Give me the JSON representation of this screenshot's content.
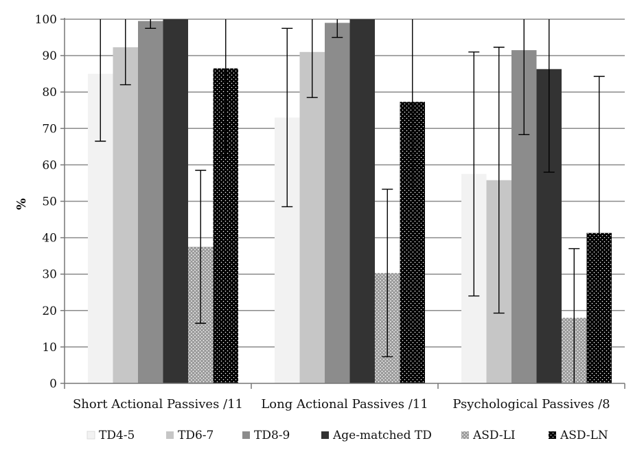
{
  "chart_data": {
    "type": "bar",
    "title": "",
    "xlabel": "",
    "ylabel": "%",
    "ylim": [
      0,
      100
    ],
    "yticks": [
      0,
      10,
      20,
      30,
      40,
      50,
      60,
      70,
      80,
      90,
      100
    ],
    "grid": true,
    "legend_position": "bottom",
    "categories": [
      "Short Actional Passives /11",
      "Long Actional Passives /11",
      "Psychological Passives /8"
    ],
    "series": [
      {
        "name": "TD4-5",
        "color": "#f2f2f2",
        "pattern": "solid",
        "values": [
          85,
          73,
          57.5
        ],
        "error": [
          18.5,
          24.5,
          33.5
        ]
      },
      {
        "name": "TD6-7",
        "color": "#c6c6c6",
        "pattern": "solid",
        "values": [
          92.3,
          91,
          55.8
        ],
        "error": [
          10.3,
          12.5,
          36.5
        ]
      },
      {
        "name": "TD8-9",
        "color": "#8c8c8c",
        "pattern": "solid",
        "values": [
          99.5,
          99,
          91.5
        ],
        "error": [
          2,
          4,
          23.2
        ]
      },
      {
        "name": "Age-matched TD",
        "color": "#333333",
        "pattern": "solid",
        "values": [
          100,
          100,
          86.3
        ],
        "error": [
          0,
          0,
          28.3
        ]
      },
      {
        "name": "ASD-LI",
        "color": "#9a9a9a",
        "pattern": "dots-light",
        "values": [
          37.5,
          30.3,
          18
        ],
        "error": [
          21,
          23,
          19
        ]
      },
      {
        "name": "ASD-LN",
        "color": "#000000",
        "pattern": "dots-dark",
        "values": [
          86.5,
          77.3,
          41.3
        ],
        "error": [
          24,
          24,
          43
        ]
      }
    ]
  }
}
